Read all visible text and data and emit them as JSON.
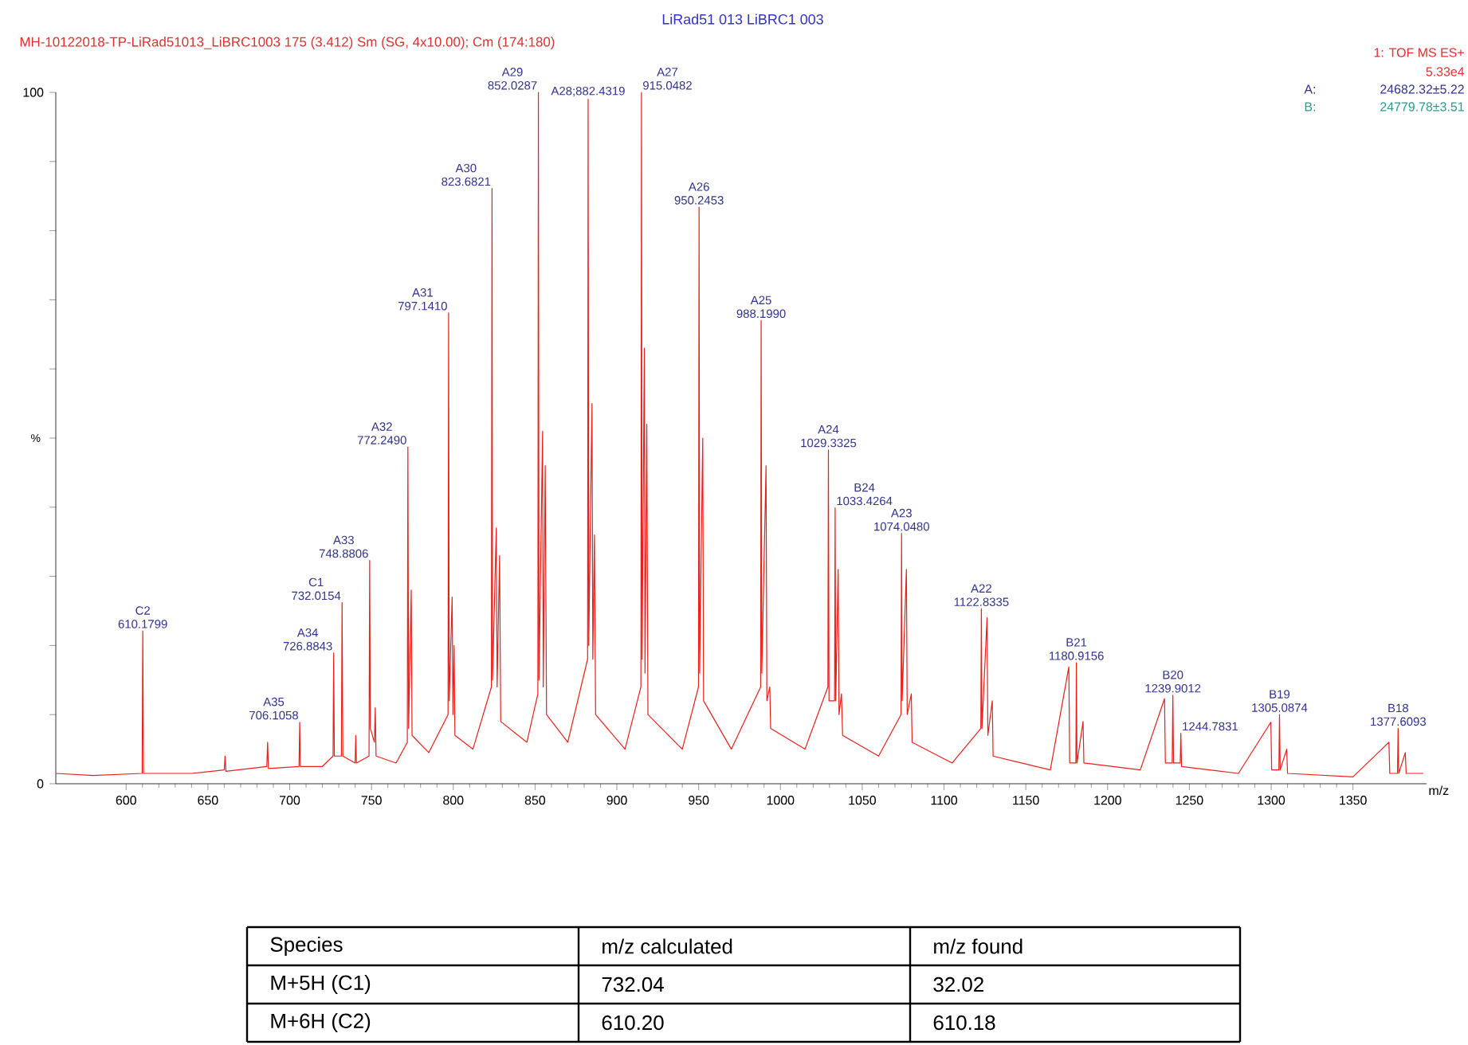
{
  "chart_data": {
    "type": "line",
    "title": "LiRad51 013 LiBRC1 003",
    "subtitle": "MH-10122018-TP-LiRad51013_LiBRC1003  175 (3.412) Sm (SG, 4x10.00); Cm (174:180)",
    "xlabel": "m/z",
    "ylabel": "%",
    "xlim": [
      557,
      1395
    ],
    "ylim": [
      0,
      100
    ],
    "xticks": [
      600,
      650,
      700,
      750,
      800,
      850,
      900,
      950,
      1000,
      1050,
      1100,
      1150,
      1200,
      1250,
      1300,
      1350
    ],
    "yticks": [
      0,
      {
        "value": 10,
        "label": null
      },
      {
        "value": 20,
        "label": null
      },
      {
        "value": 30,
        "label": null
      },
      {
        "value": 40,
        "label": null
      },
      {
        "value": 50,
        "label": null
      },
      {
        "value": 60,
        "label": null
      },
      {
        "value": 70,
        "label": null
      },
      {
        "value": 80,
        "label": null
      },
      {
        "value": 90,
        "label": null
      },
      100
    ],
    "marker": "none",
    "line_style": "solid",
    "grid": false,
    "series": [
      {
        "color": "#e8201c",
        "x": [
          557,
          580,
          609.8,
          610.18,
          610.6,
          640,
          660,
          660.5,
          661,
          686,
          686.5,
          687,
          705.7,
          706.11,
          706.5,
          720,
          726.5,
          726.88,
          727.3,
          731.6,
          732.02,
          732.5,
          740,
          740.4,
          740.8,
          748.5,
          748.88,
          749.3,
          751.8,
          752.3,
          752.8,
          765,
          771.9,
          772.25,
          772.7,
          774.3,
          774.8,
          785,
          796.8,
          797.14,
          797.5,
          799.3,
          799.8,
          800.5,
          801,
          812,
          823.3,
          823.68,
          824,
          826.3,
          826.8,
          828.3,
          829,
          845,
          851.7,
          852.03,
          852.4,
          854.6,
          855,
          856.2,
          857,
          870,
          882.1,
          882.43,
          882.8,
          884.8,
          885.3,
          886.3,
          887,
          905,
          914.7,
          915.05,
          915.4,
          916.8,
          917.2,
          918.3,
          919,
          940,
          949.9,
          950.25,
          950.6,
          952.5,
          953,
          970,
          987.9,
          988.2,
          988.6,
          991.2,
          991.7,
          993.5,
          994,
          1015,
          1029,
          1029.33,
          1029.7,
          1033.1,
          1033.43,
          1033.8,
          1035.3,
          1035.8,
          1037.3,
          1038,
          1060,
          1073.7,
          1074.05,
          1074.4,
          1077,
          1077.5,
          1080,
          1080.5,
          1105,
          1122.5,
          1122.83,
          1123.2,
          1126.3,
          1126.8,
          1129.5,
          1130,
          1165,
          1176.3,
          1176.8,
          1180.6,
          1180.92,
          1181.3,
          1185,
          1185.5,
          1220,
          1234.8,
          1235.3,
          1239.5,
          1239.9,
          1240.3,
          1244.4,
          1244.78,
          1245.2,
          1280,
          1299.8,
          1300.3,
          1304.7,
          1305.09,
          1305.5,
          1309.5,
          1310,
          1350,
          1372,
          1372.5,
          1377.2,
          1377.61,
          1378,
          1382,
          1382.5,
          1393
        ],
        "values": [
          1.5,
          1.2,
          1.5,
          22.1,
          1.5,
          1.5,
          2,
          4,
          1.8,
          2.5,
          6,
          2.2,
          2.5,
          8.9,
          2.5,
          2.5,
          4,
          18.9,
          4,
          4,
          26.2,
          4,
          3,
          7,
          3,
          4,
          32.3,
          8,
          6,
          11,
          4,
          3,
          6,
          48.7,
          8,
          28,
          7,
          4.5,
          10,
          68.1,
          12,
          27,
          10,
          20,
          7,
          5,
          14,
          86.1,
          15,
          37,
          14,
          33,
          9,
          6,
          13,
          100,
          15,
          51,
          14,
          46,
          10,
          6,
          18,
          99,
          20,
          55,
          18,
          36,
          10,
          5,
          14,
          100,
          18,
          63,
          16,
          52,
          10,
          5,
          14,
          83.4,
          16,
          50,
          12,
          5,
          14,
          67,
          16,
          46,
          12,
          14,
          8,
          5,
          14,
          48.3,
          12,
          12,
          39.9,
          12,
          31,
          10,
          13,
          7,
          4,
          10,
          36.2,
          12,
          31,
          10,
          13,
          6,
          3,
          8,
          25.3,
          8,
          24,
          7,
          12,
          4,
          2,
          16.9,
          3,
          3,
          17.5,
          3,
          9,
          3,
          2,
          12.3,
          3,
          3,
          12.8,
          3,
          3,
          7.3,
          2.5,
          1.5,
          8.9,
          2,
          2,
          10,
          2,
          5,
          1.5,
          1,
          6,
          1.5,
          1.5,
          8,
          1.5,
          4.5,
          1.5,
          1.5
        ]
      }
    ],
    "annotations": [
      {
        "text": "C2",
        "x": 610.18,
        "y": 22.1
      },
      {
        "text": "610.1799",
        "x": 610.18,
        "y": 22.1
      },
      {
        "text": "A35",
        "x": 706.11,
        "y": 8.9
      },
      {
        "text": "706.1058",
        "x": 706.11,
        "y": 8.9
      },
      {
        "text": "A34",
        "x": 726.88,
        "y": 18.9
      },
      {
        "text": "726.8843",
        "x": 726.88,
        "y": 18.9
      },
      {
        "text": "C1",
        "x": 732.02,
        "y": 26.2
      },
      {
        "text": "732.0154",
        "x": 732.02,
        "y": 26.2
      },
      {
        "text": "A33",
        "x": 748.88,
        "y": 32.3
      },
      {
        "text": "748.8806",
        "x": 748.88,
        "y": 32.3
      },
      {
        "text": "A32",
        "x": 772.25,
        "y": 48.7
      },
      {
        "text": "772.2490",
        "x": 772.25,
        "y": 48.7
      },
      {
        "text": "A31",
        "x": 797.14,
        "y": 68.1
      },
      {
        "text": "797.1410",
        "x": 797.14,
        "y": 68.1
      },
      {
        "text": "A30",
        "x": 823.68,
        "y": 86.1
      },
      {
        "text": "823.6821",
        "x": 823.68,
        "y": 86.1
      },
      {
        "text": "A29",
        "x": 852.03,
        "y": 100
      },
      {
        "text": "852.0287",
        "x": 852.03,
        "y": 100
      },
      {
        "text": "A28;882.4319",
        "x": 882.43,
        "y": 99
      },
      {
        "text": "A27",
        "x": 915.05,
        "y": 100
      },
      {
        "text": "915.0482",
        "x": 915.05,
        "y": 100
      },
      {
        "text": "A26",
        "x": 950.25,
        "y": 83.4
      },
      {
        "text": "950.2453",
        "x": 950.25,
        "y": 83.4
      },
      {
        "text": "A25",
        "x": 988.2,
        "y": 67
      },
      {
        "text": "988.1990",
        "x": 988.2,
        "y": 67
      },
      {
        "text": "A24",
        "x": 1029.33,
        "y": 48.3
      },
      {
        "text": "1029.3325",
        "x": 1029.33,
        "y": 48.3
      },
      {
        "text": "B24",
        "x": 1033.43,
        "y": 39.9
      },
      {
        "text": "1033.4264",
        "x": 1033.43,
        "y": 39.9
      },
      {
        "text": "A23",
        "x": 1074.05,
        "y": 36.2
      },
      {
        "text": "1074.0480",
        "x": 1074.05,
        "y": 36.2
      },
      {
        "text": "A22",
        "x": 1122.83,
        "y": 25.3
      },
      {
        "text": "1122.8335",
        "x": 1122.83,
        "y": 25.3
      },
      {
        "text": "B21",
        "x": 1180.92,
        "y": 17.5
      },
      {
        "text": "1180.9156",
        "x": 1180.92,
        "y": 17.5
      },
      {
        "text": "B20",
        "x": 1239.9,
        "y": 12.8
      },
      {
        "text": "1239.9012",
        "x": 1239.9,
        "y": 12.8
      },
      {
        "text": "1244.7831",
        "x": 1244.78,
        "y": 7.3
      },
      {
        "text": "B19",
        "x": 1305.09,
        "y": 10
      },
      {
        "text": "1305.0874",
        "x": 1305.09,
        "y": 10
      },
      {
        "text": "B18",
        "x": 1377.61,
        "y": 8
      },
      {
        "text": "1377.6093",
        "x": 1377.61,
        "y": 8
      },
      "1: TOF MS ES+",
      "5.33e4",
      "A:",
      "24682.32±5.22",
      "B:",
      "24779.78±3.51",
      "Species",
      "m/z calculated",
      "m/z found",
      "M+5H (C1)",
      "732.04",
      "32.02",
      "M+6H (C2)",
      "610.20",
      "610.18"
    ]
  }
}
